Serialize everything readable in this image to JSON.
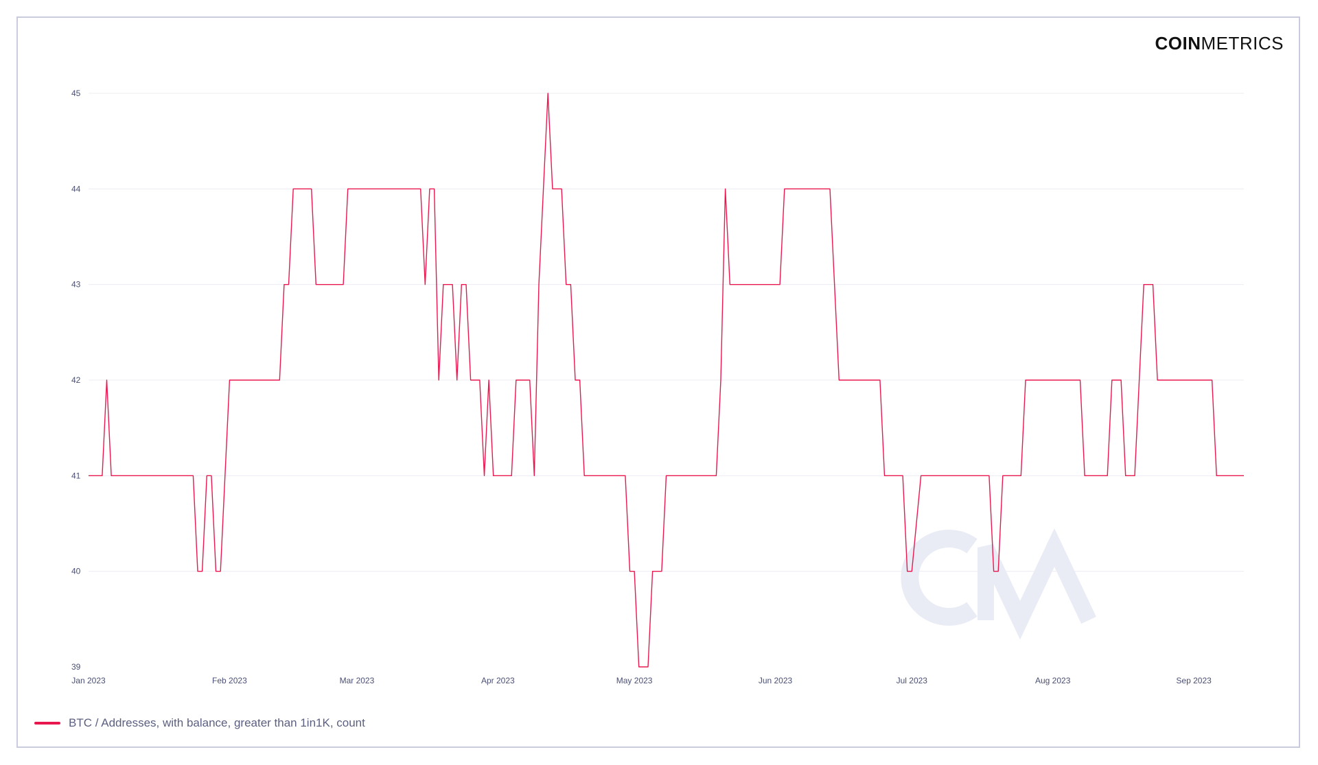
{
  "brand": {
    "bold": "COIN",
    "light": "METRICS"
  },
  "watermark": {
    "text": "CM",
    "color": "#e9ebf5"
  },
  "colors": {
    "series": "#e8184f",
    "grid": "#ececf3",
    "tick_text": "#4a4f73",
    "legend_text": "#5b5f80",
    "frame": "#c9cbdc"
  },
  "chart_data": {
    "type": "line",
    "step": true,
    "title": "",
    "xlabel": "",
    "ylabel": "",
    "ylim": [
      39,
      45
    ],
    "xlim": [
      "2023-01-01",
      "2023-09-12"
    ],
    "yticks": [
      "39",
      "40",
      "41",
      "42",
      "43",
      "44",
      "45"
    ],
    "xticks": [
      {
        "date": "2023-01-01",
        "label": "Jan 2023"
      },
      {
        "date": "2023-02-01",
        "label": "Feb 2023"
      },
      {
        "date": "2023-03-01",
        "label": "Mar 2023"
      },
      {
        "date": "2023-04-01",
        "label": "Apr 2023"
      },
      {
        "date": "2023-05-01",
        "label": "May 2023"
      },
      {
        "date": "2023-06-01",
        "label": "Jun 2023"
      },
      {
        "date": "2023-07-01",
        "label": "Jul 2023"
      },
      {
        "date": "2023-08-01",
        "label": "Aug 2023"
      },
      {
        "date": "2023-09-01",
        "label": "Sep 2023"
      }
    ],
    "grid": true,
    "legend_position": "bottom-left",
    "series": [
      {
        "name": "BTC / Addresses, with balance, greater than 1in1K, count",
        "color": "#e8184f",
        "points": [
          [
            "2023-01-01",
            41
          ],
          [
            "2023-01-04",
            41
          ],
          [
            "2023-01-05",
            42
          ],
          [
            "2023-01-06",
            41
          ],
          [
            "2023-01-24",
            41
          ],
          [
            "2023-01-25",
            40
          ],
          [
            "2023-01-26",
            40
          ],
          [
            "2023-01-27",
            41
          ],
          [
            "2023-01-28",
            41
          ],
          [
            "2023-01-29",
            40
          ],
          [
            "2023-01-30",
            40
          ],
          [
            "2023-01-31",
            41
          ],
          [
            "2023-02-01",
            42
          ],
          [
            "2023-02-12",
            42
          ],
          [
            "2023-02-13",
            43
          ],
          [
            "2023-02-14",
            43
          ],
          [
            "2023-02-15",
            44
          ],
          [
            "2023-02-19",
            44
          ],
          [
            "2023-02-20",
            43
          ],
          [
            "2023-02-26",
            43
          ],
          [
            "2023-02-27",
            44
          ],
          [
            "2023-03-15",
            44
          ],
          [
            "2023-03-16",
            43
          ],
          [
            "2023-03-17",
            44
          ],
          [
            "2023-03-18",
            44
          ],
          [
            "2023-03-19",
            42
          ],
          [
            "2023-03-20",
            43
          ],
          [
            "2023-03-22",
            43
          ],
          [
            "2023-03-23",
            42
          ],
          [
            "2023-03-24",
            43
          ],
          [
            "2023-03-25",
            43
          ],
          [
            "2023-03-26",
            42
          ],
          [
            "2023-03-28",
            42
          ],
          [
            "2023-03-29",
            41
          ],
          [
            "2023-03-30",
            42
          ],
          [
            "2023-03-31",
            41
          ],
          [
            "2023-04-04",
            41
          ],
          [
            "2023-04-05",
            42
          ],
          [
            "2023-04-08",
            42
          ],
          [
            "2023-04-09",
            41
          ],
          [
            "2023-04-10",
            43
          ],
          [
            "2023-04-12",
            45
          ],
          [
            "2023-04-13",
            44
          ],
          [
            "2023-04-15",
            44
          ],
          [
            "2023-04-16",
            43
          ],
          [
            "2023-04-17",
            43
          ],
          [
            "2023-04-18",
            42
          ],
          [
            "2023-04-19",
            42
          ],
          [
            "2023-04-20",
            41
          ],
          [
            "2023-04-29",
            41
          ],
          [
            "2023-04-30",
            40
          ],
          [
            "2023-05-01",
            40
          ],
          [
            "2023-05-02",
            39
          ],
          [
            "2023-05-04",
            39
          ],
          [
            "2023-05-05",
            40
          ],
          [
            "2023-05-07",
            40
          ],
          [
            "2023-05-08",
            41
          ],
          [
            "2023-05-19",
            41
          ],
          [
            "2023-05-20",
            42
          ],
          [
            "2023-05-21",
            44
          ],
          [
            "2023-05-22",
            43
          ],
          [
            "2023-06-02",
            43
          ],
          [
            "2023-06-03",
            44
          ],
          [
            "2023-06-13",
            44
          ],
          [
            "2023-06-15",
            42
          ],
          [
            "2023-06-24",
            42
          ],
          [
            "2023-06-25",
            41
          ],
          [
            "2023-06-29",
            41
          ],
          [
            "2023-06-30",
            40
          ],
          [
            "2023-07-01",
            40
          ],
          [
            "2023-07-03",
            41
          ],
          [
            "2023-07-18",
            41
          ],
          [
            "2023-07-19",
            40
          ],
          [
            "2023-07-20",
            40
          ],
          [
            "2023-07-21",
            41
          ],
          [
            "2023-07-25",
            41
          ],
          [
            "2023-07-26",
            42
          ],
          [
            "2023-08-07",
            42
          ],
          [
            "2023-08-08",
            41
          ],
          [
            "2023-08-13",
            41
          ],
          [
            "2023-08-14",
            42
          ],
          [
            "2023-08-16",
            42
          ],
          [
            "2023-08-17",
            41
          ],
          [
            "2023-08-19",
            41
          ],
          [
            "2023-08-20",
            42
          ],
          [
            "2023-08-21",
            43
          ],
          [
            "2023-08-23",
            43
          ],
          [
            "2023-08-24",
            42
          ],
          [
            "2023-09-05",
            42
          ],
          [
            "2023-09-06",
            41
          ],
          [
            "2023-09-12",
            41
          ]
        ]
      }
    ]
  }
}
